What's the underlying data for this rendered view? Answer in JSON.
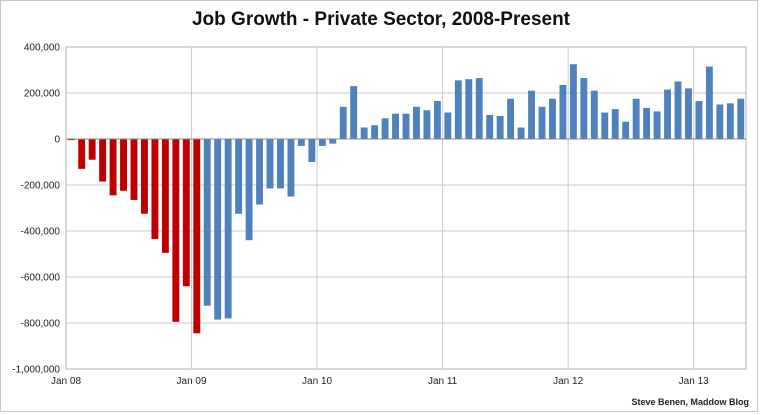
{
  "chart_data": {
    "type": "bar",
    "title": "Job Growth - Private Sector, 2008-Present",
    "credit": "Steve Benen, Maddow Blog",
    "xlabel": "",
    "ylabel": "",
    "ylim": [
      -1000000,
      400000
    ],
    "y_ticks": [
      400000,
      200000,
      0,
      -200000,
      -400000,
      -600000,
      -800000,
      -1000000
    ],
    "y_tick_labels": [
      "400,000",
      "200,000",
      "0",
      "-200,000",
      "-400,000",
      "-600,000",
      "-800,000",
      "-1,000,000"
    ],
    "x_tick_labels": [
      "Jan 08",
      "Jan 09",
      "Jan 10",
      "Jan 11",
      "Jan 12",
      "Jan 13"
    ],
    "x_tick_months": [
      0,
      12,
      24,
      36,
      48,
      60
    ],
    "grid": true,
    "colors": {
      "before_2009": "#c00000",
      "after_2009": "#4f81bd"
    },
    "series": [
      {
        "values": [
          -5000,
          -130000,
          -90000,
          -185000,
          -245000,
          -225000,
          -265000,
          -325000,
          -435000,
          -495000,
          -795000,
          -640000,
          -845000,
          -725000,
          -785000,
          -780000,
          -325000,
          -440000,
          -285000,
          -215000,
          -215000,
          -250000,
          -30000,
          -100000,
          -30000,
          -20000,
          140000,
          230000,
          50000,
          60000,
          90000,
          110000,
          110000,
          140000,
          125000,
          165000,
          115000,
          255000,
          260000,
          265000,
          105000,
          100000,
          175000,
          50000,
          210000,
          140000,
          175000,
          235000,
          325000,
          265000,
          210000,
          115000,
          130000,
          75000,
          175000,
          135000,
          120000,
          215000,
          250000,
          220000,
          165000,
          315000,
          150000,
          155000,
          175000
        ],
        "colors_by_index": "red for indices 0-12, blue after"
      }
    ]
  }
}
